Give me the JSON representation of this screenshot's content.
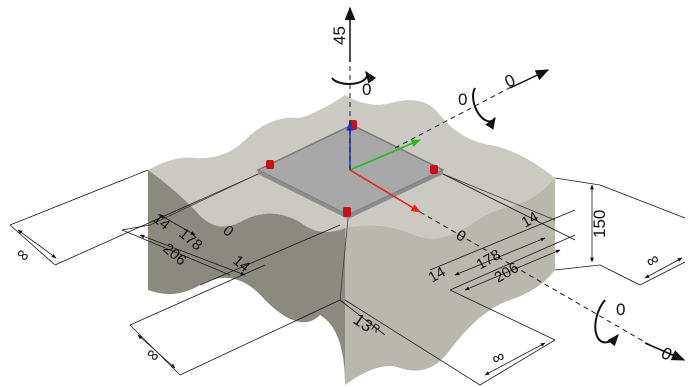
{
  "colors": {
    "top_face": "#cacac2",
    "side_left": "#8a8a80",
    "side_right": "#b8b8ae",
    "plate": "#a8a8a8",
    "plate_edge": "#7a7a7a",
    "anchor": "#cc1111",
    "axis_x": "#ee2222",
    "axis_y": "#22bb22",
    "axis_z": "#2233dd"
  },
  "labels": {
    "rotation_z_load": "45",
    "rotation_z_moment": "0",
    "rotation_y_moment": "0",
    "rotation_y_force": "0",
    "rotation_x_moment": "0",
    "rotation_x_force": "0",
    "left_edge": "14",
    "left_offset": "0",
    "left_width_inner": "178",
    "left_width_outer": "206",
    "left_edge_2": "14",
    "right_edge": "14",
    "right_offset": "0",
    "right_width_inner": "178",
    "right_width_outer": "206",
    "right_edge_2": "14",
    "thickness": "150",
    "radius": "13",
    "radius_suffix": "R",
    "infinite_left": "∞",
    "infinite_bottom_left": "∞",
    "infinite_bottom_right": "∞",
    "infinite_right": "∞"
  },
  "icons": [
    "rotation-arrow-icon",
    "force-arrow-icon",
    "anchor-bolt-icon",
    "axis-triad-icon"
  ]
}
